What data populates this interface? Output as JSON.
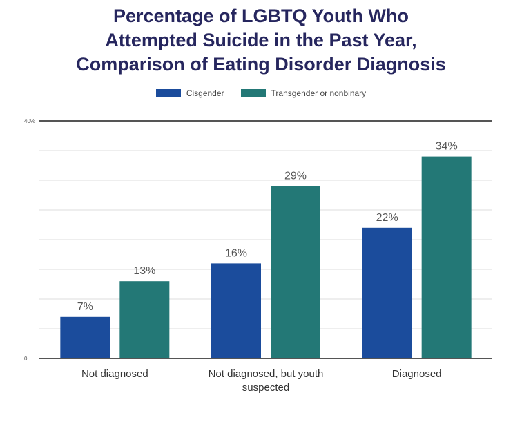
{
  "chart_data": {
    "type": "bar",
    "title_lines": [
      "Percentage of LGBTQ Youth Who",
      "Attempted Suicide in the Past Year,",
      "Comparison of Eating Disorder Diagnosis"
    ],
    "categories": [
      [
        "Not diagnosed"
      ],
      [
        "Not diagnosed, but youth",
        "suspected"
      ],
      [
        "Diagnosed"
      ]
    ],
    "series": [
      {
        "name": "Cisgender",
        "color": "#1b4c9c",
        "values": [
          7,
          16,
          22
        ],
        "labels": [
          "7%",
          "16%",
          "22%"
        ]
      },
      {
        "name": "Transgender or nonbinary",
        "color": "#237876",
        "values": [
          13,
          29,
          34
        ],
        "labels": [
          "13%",
          "29%",
          "34%"
        ]
      }
    ],
    "ylim": [
      0,
      40
    ],
    "y_tick_labels": [
      {
        "value": 0,
        "label": "0"
      },
      {
        "value": 40,
        "label": "40%"
      }
    ],
    "grid": true,
    "legend_position": "top-center",
    "xlabel": "",
    "ylabel": ""
  }
}
